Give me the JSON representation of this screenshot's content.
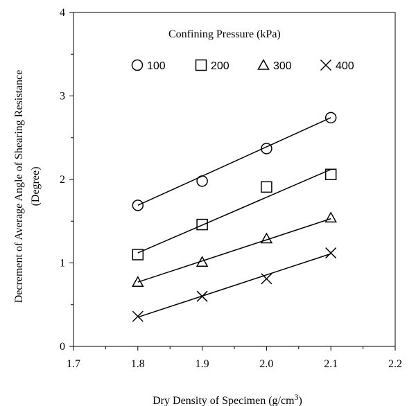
{
  "chart_data": {
    "type": "scatter",
    "xlabel": "Dry Density of Specimen (g/cm",
    "xlabel_superscript": "3",
    "xlabel_suffix": ")",
    "ylabel_line1": "Decrement of Average Angle of Shearing Resistance",
    "ylabel_line2": "(Degree)",
    "xlim": [
      1.7,
      2.2
    ],
    "ylim": [
      0,
      4
    ],
    "x_ticks": [
      "1.7",
      "1.8",
      "1.9",
      "2.0",
      "2.1",
      "2.2"
    ],
    "y_ticks": [
      "0",
      "1",
      "2",
      "3",
      "4"
    ],
    "grid": false,
    "legend": {
      "title": "Confining Pressure  (kPa)",
      "placement": "top"
    },
    "series": [
      {
        "name": "100",
        "marker": "circle",
        "x": [
          1.8,
          1.9,
          2.0,
          2.1
        ],
        "y": [
          1.69,
          1.98,
          2.37,
          2.74
        ],
        "fit": [
          [
            1.8,
            1.69
          ],
          [
            2.1,
            2.74
          ]
        ]
      },
      {
        "name": "200",
        "marker": "square",
        "x": [
          1.8,
          1.9,
          2.0,
          2.1
        ],
        "y": [
          1.1,
          1.46,
          1.91,
          2.06
        ],
        "fit": [
          [
            1.8,
            1.12
          ],
          [
            2.1,
            2.12
          ]
        ]
      },
      {
        "name": "300",
        "marker": "triangle",
        "x": [
          1.8,
          1.9,
          2.0,
          2.1
        ],
        "y": [
          0.77,
          1.01,
          1.29,
          1.54
        ],
        "fit": [
          [
            1.8,
            0.77
          ],
          [
            2.1,
            1.53
          ]
        ]
      },
      {
        "name": "400",
        "marker": "cross",
        "x": [
          1.8,
          1.9,
          2.0,
          2.1
        ],
        "y": [
          0.36,
          0.6,
          0.81,
          1.12
        ],
        "fit": [
          [
            1.8,
            0.35
          ],
          [
            2.1,
            1.11
          ]
        ]
      }
    ]
  }
}
